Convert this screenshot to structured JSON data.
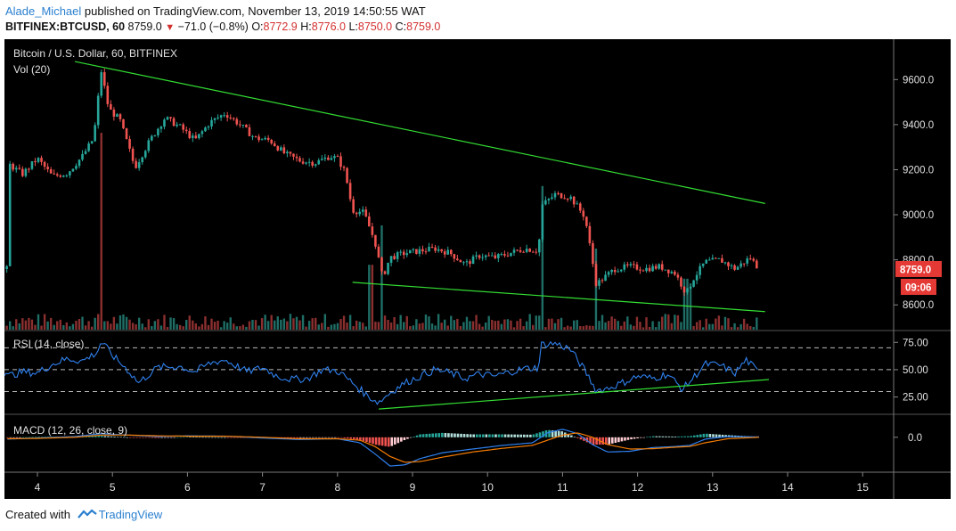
{
  "header": {
    "author": "Alade_Michael",
    "published": "published on TradingView.com, November 13, 2019 14:50:55 WAT",
    "symbol": "BITFINEX:BTCUSD, 60",
    "last": "8759.0",
    "change_arrow": "▼",
    "change": "−71.0 (−0.8%)",
    "o_label": "O:",
    "o_val": "8772.9",
    "h_label": "H:",
    "h_val": "8776.0",
    "l_label": "L:",
    "l_val": "8750.0",
    "c_label": "C:",
    "c_val": "8759.0"
  },
  "footer": {
    "created": "Created with",
    "brand": "TradingView"
  },
  "colors": {
    "background": "#000000",
    "up": "#26a69a",
    "down": "#ef5350",
    "trendline": "#33dd33",
    "rsi": "#2f80ed",
    "macd": "#2f80ed",
    "signal": "#f57c00",
    "price_label": "#e53935"
  },
  "chart_data": [
    {
      "type": "candlestick",
      "title": "Bitcoin / U.S. Dollar, 60, BITFINEX",
      "subtitle": "Vol (20)",
      "x_ticks": [
        "4",
        "5",
        "6",
        "7",
        "8",
        "9",
        "10",
        "11",
        "12",
        "13",
        "14",
        "15"
      ],
      "y_ticks": [
        "9600.0",
        "9400.0",
        "9200.0",
        "9000.0",
        "8800.0",
        "8600.0"
      ],
      "ylim": [
        8490,
        9700
      ],
      "current_price_label": "8759.0",
      "countdown_label": "09:06",
      "price_path": [
        [
          3.6,
          9230
        ],
        [
          3.8,
          9180
        ],
        [
          4.0,
          9250
        ],
        [
          4.2,
          9170
        ],
        [
          4.4,
          9185
        ],
        [
          4.6,
          9260
        ],
        [
          4.75,
          9340
        ],
        [
          4.85,
          9640
        ],
        [
          4.95,
          9470
        ],
        [
          5.1,
          9420
        ],
        [
          5.3,
          9210
        ],
        [
          5.5,
          9330
        ],
        [
          5.7,
          9430
        ],
        [
          5.9,
          9390
        ],
        [
          6.1,
          9330
        ],
        [
          6.3,
          9410
        ],
        [
          6.5,
          9450
        ],
        [
          6.7,
          9400
        ],
        [
          6.9,
          9340
        ],
        [
          7.1,
          9330
        ],
        [
          7.3,
          9270
        ],
        [
          7.5,
          9240
        ],
        [
          7.7,
          9230
        ],
        [
          7.9,
          9260
        ],
        [
          8.0,
          9250
        ],
        [
          8.1,
          9190
        ],
        [
          8.2,
          9020
        ],
        [
          8.35,
          9010
        ],
        [
          8.5,
          8880
        ],
        [
          8.6,
          8720
        ],
        [
          8.7,
          8810
        ],
        [
          8.9,
          8830
        ],
        [
          9.1,
          8840
        ],
        [
          9.3,
          8850
        ],
        [
          9.5,
          8830
        ],
        [
          9.7,
          8780
        ],
        [
          9.9,
          8820
        ],
        [
          10.1,
          8810
        ],
        [
          10.3,
          8830
        ],
        [
          10.5,
          8850
        ],
        [
          10.68,
          8840
        ],
        [
          10.72,
          9040
        ],
        [
          10.9,
          9090
        ],
        [
          11.1,
          9080
        ],
        [
          11.3,
          8990
        ],
        [
          11.45,
          8690
        ],
        [
          11.55,
          8720
        ],
        [
          11.7,
          8760
        ],
        [
          11.9,
          8770
        ],
        [
          12.1,
          8760
        ],
        [
          12.3,
          8770
        ],
        [
          12.5,
          8740
        ],
        [
          12.65,
          8650
        ],
        [
          12.75,
          8720
        ],
        [
          12.9,
          8790
        ],
        [
          13.1,
          8800
        ],
        [
          13.3,
          8760
        ],
        [
          13.5,
          8810
        ],
        [
          13.62,
          8759
        ]
      ],
      "volume_spikes": [
        [
          4.85,
          0.85
        ],
        [
          8.45,
          0.28
        ],
        [
          8.6,
          0.45
        ],
        [
          10.72,
          0.62
        ],
        [
          11.45,
          0.35
        ],
        [
          12.65,
          0.22
        ],
        [
          12.7,
          0.2
        ]
      ],
      "trendlines": [
        {
          "from": [
            4.5,
            9680
          ],
          "to": [
            13.7,
            9050
          ]
        },
        {
          "from": [
            8.2,
            8700
          ],
          "to": [
            13.7,
            8570
          ]
        }
      ]
    },
    {
      "type": "line",
      "title": "RSI (14, close)",
      "y_ticks": [
        "75.00",
        "50.00",
        "25.00"
      ],
      "ylim": [
        10,
        85
      ],
      "bands": [
        70,
        50,
        30
      ],
      "rsi_path": [
        [
          3.6,
          44
        ],
        [
          3.8,
          48
        ],
        [
          4.0,
          47
        ],
        [
          4.2,
          55
        ],
        [
          4.4,
          60
        ],
        [
          4.6,
          58
        ],
        [
          4.8,
          66
        ],
        [
          4.85,
          76
        ],
        [
          5.0,
          63
        ],
        [
          5.2,
          50
        ],
        [
          5.35,
          38
        ],
        [
          5.6,
          52
        ],
        [
          5.9,
          53
        ],
        [
          6.1,
          48
        ],
        [
          6.3,
          56
        ],
        [
          6.5,
          59
        ],
        [
          6.8,
          48
        ],
        [
          7.0,
          52
        ],
        [
          7.2,
          44
        ],
        [
          7.4,
          41
        ],
        [
          7.6,
          42
        ],
        [
          7.8,
          50
        ],
        [
          8.0,
          49
        ],
        [
          8.2,
          38
        ],
        [
          8.4,
          26
        ],
        [
          8.55,
          20
        ],
        [
          8.7,
          29
        ],
        [
          8.9,
          38
        ],
        [
          9.1,
          44
        ],
        [
          9.3,
          50
        ],
        [
          9.5,
          47
        ],
        [
          9.7,
          42
        ],
        [
          9.9,
          46
        ],
        [
          10.1,
          44
        ],
        [
          10.3,
          48
        ],
        [
          10.5,
          51
        ],
        [
          10.68,
          52
        ],
        [
          10.72,
          73
        ],
        [
          10.9,
          74
        ],
        [
          11.1,
          69
        ],
        [
          11.3,
          49
        ],
        [
          11.45,
          31
        ],
        [
          11.6,
          33
        ],
        [
          11.8,
          38
        ],
        [
          12.0,
          44
        ],
        [
          12.2,
          42
        ],
        [
          12.4,
          46
        ],
        [
          12.6,
          32
        ],
        [
          12.75,
          43
        ],
        [
          12.9,
          55
        ],
        [
          13.1,
          54
        ],
        [
          13.3,
          47
        ],
        [
          13.45,
          59
        ],
        [
          13.62,
          47
        ]
      ],
      "trendline": {
        "from": [
          8.55,
          14
        ],
        "to": [
          13.75,
          41
        ]
      }
    },
    {
      "type": "line",
      "title": "MACD (12, 26, close, 9)",
      "y_ticks": [
        "0.0"
      ],
      "ylim": [
        -90,
        60
      ],
      "macd_path": [
        [
          3.6,
          -5
        ],
        [
          4.0,
          -2
        ],
        [
          4.5,
          2
        ],
        [
          4.85,
          10
        ],
        [
          5.2,
          6
        ],
        [
          5.6,
          2
        ],
        [
          6.0,
          4
        ],
        [
          6.5,
          3
        ],
        [
          7.0,
          -2
        ],
        [
          7.5,
          -6
        ],
        [
          8.0,
          -4
        ],
        [
          8.3,
          -15
        ],
        [
          8.5,
          -45
        ],
        [
          8.7,
          -78
        ],
        [
          8.9,
          -75
        ],
        [
          9.1,
          -58
        ],
        [
          9.4,
          -42
        ],
        [
          9.8,
          -32
        ],
        [
          10.2,
          -22
        ],
        [
          10.6,
          -15
        ],
        [
          10.8,
          12
        ],
        [
          11.0,
          22
        ],
        [
          11.2,
          10
        ],
        [
          11.4,
          -20
        ],
        [
          11.6,
          -40
        ],
        [
          11.9,
          -38
        ],
        [
          12.2,
          -28
        ],
        [
          12.5,
          -25
        ],
        [
          12.7,
          -22
        ],
        [
          12.9,
          -5
        ],
        [
          13.2,
          2
        ],
        [
          13.62,
          1
        ]
      ],
      "signal_path": [
        [
          3.6,
          -4
        ],
        [
          4.0,
          -3
        ],
        [
          4.5,
          0
        ],
        [
          4.85,
          6
        ],
        [
          5.2,
          6
        ],
        [
          5.6,
          4
        ],
        [
          6.0,
          3
        ],
        [
          6.5,
          3
        ],
        [
          7.0,
          0
        ],
        [
          7.5,
          -4
        ],
        [
          8.0,
          -4
        ],
        [
          8.3,
          -8
        ],
        [
          8.5,
          -25
        ],
        [
          8.7,
          -52
        ],
        [
          8.9,
          -68
        ],
        [
          9.1,
          -66
        ],
        [
          9.4,
          -54
        ],
        [
          9.8,
          -40
        ],
        [
          10.2,
          -30
        ],
        [
          10.6,
          -22
        ],
        [
          10.8,
          -8
        ],
        [
          11.0,
          6
        ],
        [
          11.2,
          12
        ],
        [
          11.4,
          0
        ],
        [
          11.6,
          -20
        ],
        [
          11.9,
          -32
        ],
        [
          12.2,
          -31
        ],
        [
          12.5,
          -27
        ],
        [
          12.7,
          -25
        ],
        [
          12.9,
          -15
        ],
        [
          13.2,
          -4
        ],
        [
          13.62,
          0
        ]
      ]
    }
  ]
}
